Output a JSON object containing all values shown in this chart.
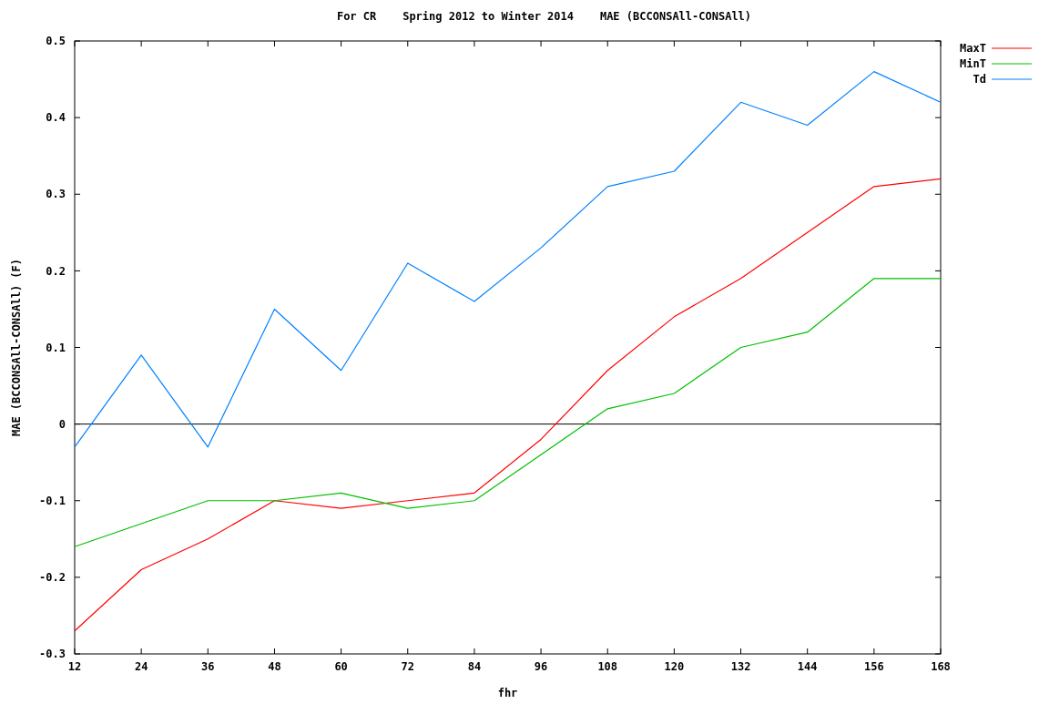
{
  "chart_data": {
    "type": "line",
    "title": "For CR    Spring 2012 to Winter 2014    MAE (BCCONSAll-CONSAll)",
    "xlabel": "fhr",
    "ylabel": "MAE (BCCONSAll-CONSAll) (F)",
    "x": [
      12,
      24,
      36,
      48,
      60,
      72,
      84,
      96,
      108,
      120,
      132,
      144,
      156,
      168
    ],
    "series": [
      {
        "name": "MaxT",
        "color": "#ff0000",
        "values": [
          -0.27,
          -0.19,
          -0.15,
          -0.1,
          -0.11,
          -0.1,
          -0.09,
          -0.02,
          0.07,
          0.14,
          0.19,
          0.25,
          0.31,
          0.32
        ]
      },
      {
        "name": "MinT",
        "color": "#00c000",
        "values": [
          -0.16,
          -0.13,
          -0.1,
          -0.1,
          -0.09,
          -0.11,
          -0.1,
          -0.04,
          0.02,
          0.04,
          0.1,
          0.12,
          0.19,
          0.19
        ]
      },
      {
        "name": "Td",
        "color": "#0080ff",
        "values": [
          -0.03,
          0.09,
          -0.03,
          0.15,
          0.07,
          0.21,
          0.16,
          0.23,
          0.31,
          0.33,
          0.42,
          0.39,
          0.46,
          0.42
        ]
      }
    ],
    "xlim": [
      12,
      168
    ],
    "xticks": [
      12,
      24,
      36,
      48,
      60,
      72,
      84,
      96,
      108,
      120,
      132,
      144,
      156,
      168
    ],
    "ylim": [
      -0.3,
      0.5
    ],
    "yticks": [
      -0.3,
      -0.2,
      -0.1,
      0,
      0.1,
      0.2,
      0.3,
      0.4,
      0.5
    ],
    "ref_lines": [
      {
        "axis": "y",
        "value": 0,
        "color": "#000000"
      }
    ],
    "legend": "top right",
    "grid": false
  }
}
